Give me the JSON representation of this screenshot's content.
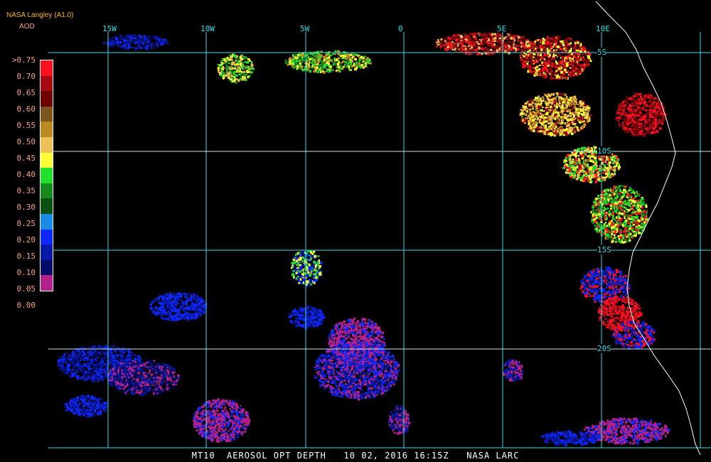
{
  "header": {
    "title": "NASA Langley (A1.0)",
    "unit": "AOD"
  },
  "legend": {
    "labels": [
      ">0.75",
      "0.70",
      "0.65",
      "0.60",
      "0.55",
      "0.50",
      "0.45",
      "0.40",
      "0.35",
      "0.30",
      "0.25",
      "0.20",
      "0.15",
      "0.10",
      "0.05",
      "0.00"
    ],
    "colors": [
      "#ff1020",
      "#a80a14",
      "#6e0202",
      "#7c561a",
      "#bc8a22",
      "#f0c058",
      "#ffff38",
      "#22e02c",
      "#168a1c",
      "#0a5010",
      "#1a8ce8",
      "#0e28ff",
      "#0818a8",
      "#040c68",
      "#b4208c"
    ]
  },
  "grid": {
    "lon_labels": [
      "15W",
      "10W",
      "5W",
      "0",
      "5E",
      "10E"
    ],
    "lat_labels": [
      "5S",
      "10S",
      "15S",
      "20S"
    ],
    "line_color": "#2fe0e8"
  },
  "footer": {
    "product": "MT10",
    "field": "AEROSOL OPT DEPTH",
    "datetime": "10 02, 2016 16:15Z",
    "source": "NASA LARC"
  }
}
